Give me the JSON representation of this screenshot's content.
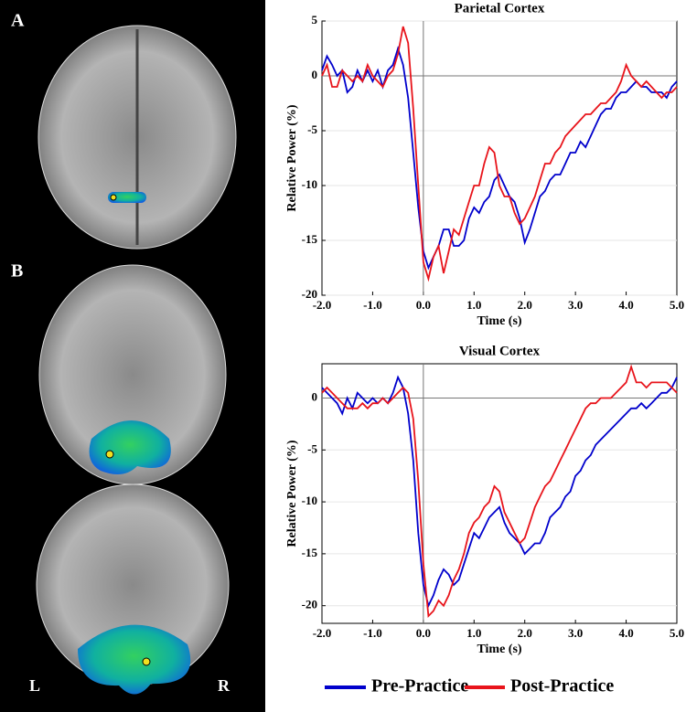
{
  "panel_labels": [
    "A",
    "B"
  ],
  "hemisphere_labels": [
    "L",
    "R"
  ],
  "chart_data": [
    {
      "type": "line",
      "title": "Parietal Cortex",
      "x_label": "Time (s)",
      "y_label": "Relative Power (%)",
      "xlim": [
        -2,
        5
      ],
      "xticks": [
        {
          "value": -2,
          "label": "-2.0"
        },
        {
          "value": -1,
          "label": "-1.0"
        },
        {
          "value": 0,
          "label": "0.0"
        },
        {
          "value": 1,
          "label": "1.0"
        },
        {
          "value": 2,
          "label": "2.0"
        },
        {
          "value": 3,
          "label": "3.0"
        },
        {
          "value": 4,
          "label": "4.0"
        },
        {
          "value": 5,
          "label": "5.0"
        }
      ],
      "ylim": [
        -20,
        5
      ],
      "yticks": [
        -20,
        -15,
        -10,
        -5,
        0,
        5
      ],
      "grid": true,
      "zero_lines": true,
      "x": [
        -2,
        -1.9,
        -1.8,
        -1.7,
        -1.6,
        -1.5,
        -1.4,
        -1.3,
        -1.2,
        -1.1,
        -1,
        -0.9,
        -0.8,
        -0.7,
        -0.6,
        -0.5,
        -0.4,
        -0.3,
        -0.2,
        -0.1,
        0,
        0.1,
        0.2,
        0.3,
        0.4,
        0.5,
        0.6,
        0.7,
        0.8,
        0.9,
        1,
        1.1,
        1.2,
        1.3,
        1.4,
        1.5,
        1.6,
        1.7,
        1.8,
        1.9,
        2,
        2.1,
        2.2,
        2.3,
        2.4,
        2.5,
        2.6,
        2.7,
        2.8,
        2.9,
        3,
        3.1,
        3.2,
        3.3,
        3.4,
        3.5,
        3.6,
        3.7,
        3.8,
        3.9,
        4,
        4.1,
        4.2,
        4.3,
        4.4,
        4.5,
        4.6,
        4.7,
        4.8,
        4.9,
        5
      ],
      "series": [
        {
          "name": "Pre-Practice",
          "color": "#0000cc",
          "values": [
            0.5,
            1.8,
            1,
            0,
            0.5,
            -1.5,
            -1,
            0.5,
            -0.5,
            0.5,
            -0.5,
            0.5,
            -1,
            0.5,
            1,
            2.5,
            1,
            -2,
            -7,
            -12,
            -16,
            -17.5,
            -16.5,
            -15.5,
            -14,
            -14,
            -15.5,
            -15.5,
            -15,
            -13,
            -12,
            -12.5,
            -11.5,
            -11,
            -9.5,
            -9,
            -10,
            -11,
            -11.5,
            -13,
            -15.2,
            -14,
            -12.5,
            -11,
            -10.5,
            -9.5,
            -9,
            -9,
            -8,
            -7,
            -7,
            -6,
            -6.5,
            -5.5,
            -4.5,
            -3.5,
            -3,
            -3,
            -2,
            -1.5,
            -1.5,
            -1,
            -0.5,
            -1,
            -1,
            -1.5,
            -1.5,
            -1.5,
            -2,
            -1,
            -0.5
          ]
        },
        {
          "name": "Post-Practice",
          "color": "#e8141b",
          "values": [
            0,
            1,
            -1,
            -1,
            0.5,
            0,
            -0.5,
            0,
            -0.5,
            1,
            0,
            -0.5,
            -1,
            0,
            0.5,
            2,
            4.5,
            3,
            -3,
            -10,
            -17,
            -18.5,
            -16.5,
            -15.5,
            -18,
            -16,
            -14,
            -14.5,
            -13,
            -11.5,
            -10,
            -10,
            -8,
            -6.5,
            -7,
            -10,
            -11,
            -11,
            -12.5,
            -13.5,
            -13,
            -12,
            -11,
            -9.5,
            -8,
            -8,
            -7,
            -6.5,
            -5.5,
            -5,
            -4.5,
            -4,
            -3.5,
            -3.5,
            -3,
            -2.5,
            -2.5,
            -2,
            -1.5,
            -0.5,
            1,
            0,
            -0.5,
            -1,
            -0.5,
            -1,
            -1.5,
            -2,
            -1.5,
            -1.5,
            -1
          ]
        }
      ]
    },
    {
      "type": "line",
      "title": "Visual Cortex",
      "x_label": "Time (s)",
      "y_label": "Relative Power (%)",
      "xlim": [
        -2,
        5
      ],
      "xticks": [
        {
          "value": -2,
          "label": "-2.0"
        },
        {
          "value": -1,
          "label": "-1.0"
        },
        {
          "value": 0,
          "label": "0.0"
        },
        {
          "value": 1,
          "label": "1.0"
        },
        {
          "value": 2,
          "label": "2.0"
        },
        {
          "value": 3,
          "label": "3.0"
        },
        {
          "value": 4,
          "label": "4.0"
        },
        {
          "value": 5,
          "label": "5.0"
        }
      ],
      "ylim": [
        -21.7,
        3.3
      ],
      "yticks": [
        -20,
        -15,
        -10,
        -5,
        0
      ],
      "grid": true,
      "zero_lines": true,
      "x": [
        -2,
        -1.9,
        -1.8,
        -1.7,
        -1.6,
        -1.5,
        -1.4,
        -1.3,
        -1.2,
        -1.1,
        -1,
        -0.9,
        -0.8,
        -0.7,
        -0.6,
        -0.5,
        -0.4,
        -0.3,
        -0.2,
        -0.1,
        0,
        0.1,
        0.2,
        0.3,
        0.4,
        0.5,
        0.6,
        0.7,
        0.8,
        0.9,
        1,
        1.1,
        1.2,
        1.3,
        1.4,
        1.5,
        1.6,
        1.7,
        1.8,
        1.9,
        2,
        2.1,
        2.2,
        2.3,
        2.4,
        2.5,
        2.6,
        2.7,
        2.8,
        2.9,
        3,
        3.1,
        3.2,
        3.3,
        3.4,
        3.5,
        3.6,
        3.7,
        3.8,
        3.9,
        4,
        4.1,
        4.2,
        4.3,
        4.4,
        4.5,
        4.6,
        4.7,
        4.8,
        4.9,
        5
      ],
      "series": [
        {
          "name": "Pre-Practice",
          "color": "#0000cc",
          "values": [
            1,
            0.5,
            0,
            -0.5,
            -1.5,
            0,
            -1,
            0.5,
            0,
            -0.5,
            0,
            -0.5,
            0,
            -0.5,
            0.5,
            2,
            1,
            -1.5,
            -6,
            -13,
            -18,
            -20,
            -19,
            -17.5,
            -16.5,
            -17,
            -18,
            -17.5,
            -16,
            -14.5,
            -13,
            -13.5,
            -12.5,
            -11.5,
            -11,
            -10.5,
            -12,
            -13,
            -13.5,
            -14,
            -15,
            -14.5,
            -14,
            -14,
            -13,
            -11.5,
            -11,
            -10.5,
            -9.5,
            -9,
            -7.5,
            -7,
            -6,
            -5.5,
            -4.5,
            -4,
            -3.5,
            -3,
            -2.5,
            -2,
            -1.5,
            -1,
            -1,
            -0.5,
            -1,
            -0.5,
            0,
            0.5,
            0.5,
            1,
            2
          ]
        },
        {
          "name": "Post-Practice",
          "color": "#e8141b",
          "values": [
            0.5,
            1,
            0.5,
            0,
            -0.5,
            -1,
            -1,
            -1,
            -0.5,
            -1,
            -0.5,
            -0.5,
            0,
            -0.5,
            0,
            0.5,
            1,
            0.5,
            -2,
            -8,
            -16,
            -21,
            -20.5,
            -19.5,
            -20,
            -19,
            -17.5,
            -16.5,
            -15,
            -13,
            -12,
            -11.5,
            -10.5,
            -10,
            -8.5,
            -9,
            -11,
            -12,
            -13,
            -14,
            -13.5,
            -12,
            -10.5,
            -9.5,
            -8.5,
            -8,
            -7,
            -6,
            -5,
            -4,
            -3,
            -2,
            -1,
            -0.5,
            -0.5,
            0,
            0,
            0,
            0.5,
            1,
            1.5,
            3,
            1.5,
            1.5,
            1,
            1.5,
            1.5,
            1.5,
            1.5,
            1,
            0.5
          ]
        }
      ]
    }
  ]
}
